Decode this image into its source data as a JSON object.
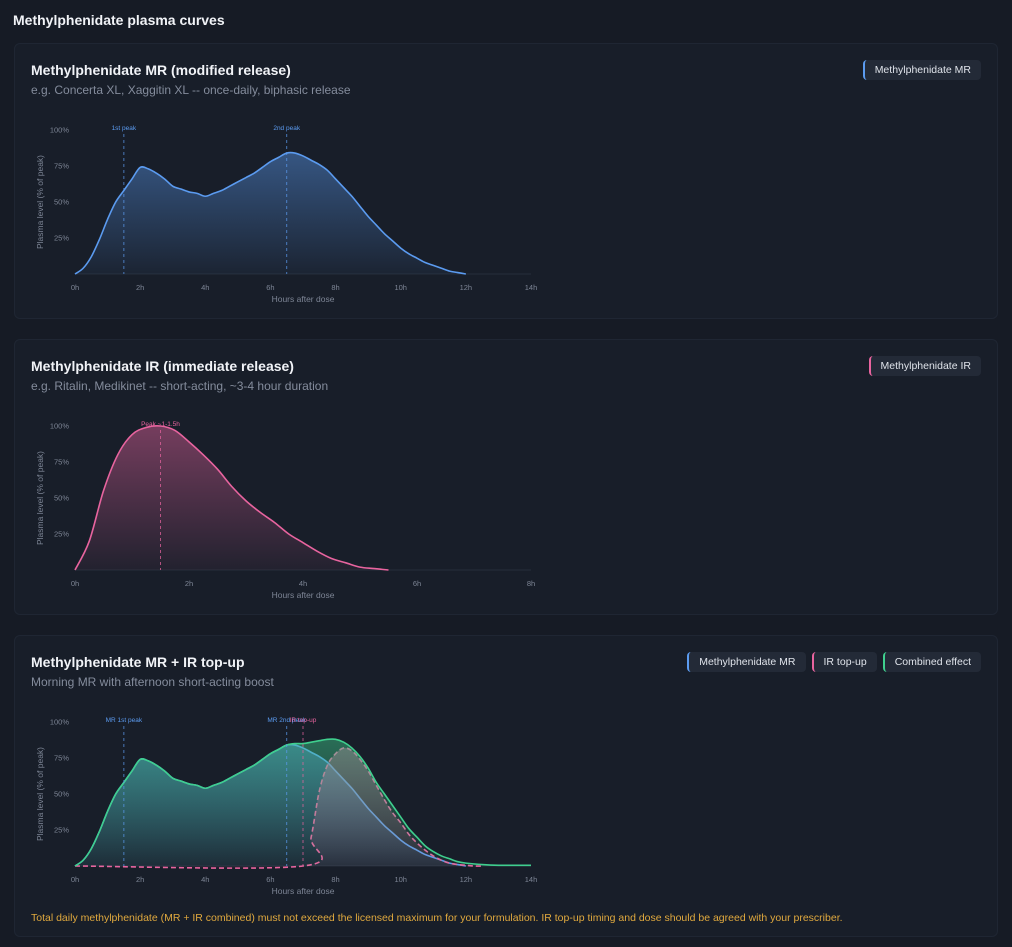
{
  "page": {
    "title": "Methylphenidate plasma curves"
  },
  "cards": [
    {
      "title": "Methylphenidate MR (modified release)",
      "subtitle": "e.g. Concerta XL, Xaggitin XL -- once-daily, biphasic release",
      "legend": [
        "Methylphenidate MR"
      ]
    },
    {
      "title": "Methylphenidate IR (immediate release)",
      "subtitle": "e.g. Ritalin, Medikinet -- short-acting, ~3-4 hour duration",
      "legend": [
        "Methylphenidate IR"
      ]
    },
    {
      "title": "Methylphenidate MR + IR top-up",
      "subtitle": "Morning MR with afternoon short-acting boost",
      "legend": [
        "Methylphenidate MR",
        "IR top-up",
        "Combined effect"
      ],
      "warning": "Total daily methylphenidate (MR + IR combined) must not exceed the licensed maximum for your formulation. IR top-up timing and dose should be agreed with your prescriber."
    }
  ],
  "colors": {
    "mr": "#5b9bf0",
    "ir": "#e8649f",
    "combined": "#3fcf8e",
    "warning": "#e0a93e"
  },
  "chart_data": [
    {
      "type": "area",
      "xlabel": "Hours after dose",
      "ylabel": "Plasma level (% of peak)",
      "xlim": [
        0,
        14
      ],
      "ylim": [
        0,
        100
      ],
      "xticks": [
        0,
        2,
        4,
        6,
        8,
        10,
        12,
        14
      ],
      "xtick_labels": [
        "0h",
        "2h",
        "4h",
        "6h",
        "8h",
        "10h",
        "12h",
        "14h"
      ],
      "yticks": [
        25,
        50,
        75,
        100
      ],
      "ytick_labels": [
        "25%",
        "50%",
        "75%",
        "100%"
      ],
      "markers": [
        {
          "x": 1.5,
          "label": "1st peak",
          "color": "#5b9bf0"
        },
        {
          "x": 6.5,
          "label": "2nd peak",
          "color": "#5b9bf0"
        }
      ],
      "series": [
        {
          "name": "Methylphenidate MR",
          "color": "#5b9bf0",
          "dashed": false,
          "x": [
            0,
            0.25,
            0.5,
            0.75,
            1,
            1.25,
            1.5,
            1.75,
            2,
            2.25,
            2.5,
            2.75,
            3,
            3.25,
            3.5,
            3.75,
            4,
            4.25,
            4.5,
            4.75,
            5,
            5.25,
            5.5,
            5.75,
            6,
            6.25,
            6.5,
            6.75,
            7,
            7.25,
            7.5,
            7.75,
            8,
            8.25,
            8.5,
            8.75,
            9,
            9.25,
            9.5,
            9.75,
            10,
            10.25,
            10.5,
            10.75,
            11,
            11.25,
            11.5,
            11.75,
            12
          ],
          "y": [
            0,
            4,
            12,
            24,
            38,
            50,
            58,
            66,
            74,
            73,
            70,
            66,
            61,
            59,
            57,
            56,
            54,
            56,
            58,
            61,
            64,
            67,
            70,
            74,
            78,
            81,
            84,
            84,
            82,
            79,
            76,
            72,
            66,
            60,
            54,
            47,
            40,
            34,
            28,
            23,
            18,
            14,
            11,
            8,
            6,
            4,
            2,
            1,
            0
          ]
        }
      ]
    },
    {
      "type": "area",
      "xlabel": "Hours after dose",
      "ylabel": "Plasma level (% of peak)",
      "xlim": [
        0,
        8
      ],
      "ylim": [
        0,
        100
      ],
      "xticks": [
        0,
        2,
        4,
        6,
        8
      ],
      "xtick_labels": [
        "0h",
        "2h",
        "4h",
        "6h",
        "8h"
      ],
      "yticks": [
        25,
        50,
        75,
        100
      ],
      "ytick_labels": [
        "25%",
        "50%",
        "75%",
        "100%"
      ],
      "markers": [
        {
          "x": 1.5,
          "label": "Peak ~1-1.5h",
          "color": "#e8649f"
        }
      ],
      "series": [
        {
          "name": "Methylphenidate IR",
          "color": "#e8649f",
          "dashed": false,
          "x": [
            0,
            0.25,
            0.5,
            0.75,
            1,
            1.25,
            1.5,
            1.75,
            2,
            2.25,
            2.5,
            2.75,
            3,
            3.25,
            3.5,
            3.75,
            4,
            4.25,
            4.5,
            4.75,
            5,
            5.25,
            5.5
          ],
          "y": [
            0,
            20,
            55,
            80,
            94,
            99,
            100,
            97,
            89,
            80,
            70,
            58,
            48,
            40,
            33,
            25,
            19,
            13,
            8,
            5,
            2,
            1,
            0
          ]
        }
      ]
    },
    {
      "type": "area",
      "xlabel": "Hours after dose",
      "ylabel": "Plasma level (% of peak)",
      "xlim": [
        0,
        14
      ],
      "ylim": [
        0,
        100
      ],
      "xticks": [
        0,
        2,
        4,
        6,
        8,
        10,
        12,
        14
      ],
      "xtick_labels": [
        "0h",
        "2h",
        "4h",
        "6h",
        "8h",
        "10h",
        "12h",
        "14h"
      ],
      "yticks": [
        25,
        50,
        75,
        100
      ],
      "ytick_labels": [
        "25%",
        "50%",
        "75%",
        "100%"
      ],
      "markers": [
        {
          "x": 1.5,
          "label": "MR 1st peak",
          "color": "#5b9bf0"
        },
        {
          "x": 6.5,
          "label": "MR 2nd peak",
          "color": "#5b9bf0"
        },
        {
          "x": 7,
          "label": "IR top-up",
          "color": "#e8649f"
        }
      ],
      "series": [
        {
          "name": "Methylphenidate MR",
          "color": "#5b9bf0",
          "dashed": false,
          "x": [
            0,
            0.25,
            0.5,
            0.75,
            1,
            1.25,
            1.5,
            1.75,
            2,
            2.25,
            2.5,
            2.75,
            3,
            3.25,
            3.5,
            3.75,
            4,
            4.25,
            4.5,
            4.75,
            5,
            5.25,
            5.5,
            5.75,
            6,
            6.25,
            6.5,
            6.75,
            7,
            7.25,
            7.5,
            7.75,
            8,
            8.25,
            8.5,
            8.75,
            9,
            9.25,
            9.5,
            9.75,
            10,
            10.25,
            10.5,
            10.75,
            11,
            11.25,
            11.5,
            11.75,
            12
          ],
          "y": [
            0,
            4,
            12,
            24,
            38,
            50,
            58,
            66,
            74,
            73,
            70,
            66,
            61,
            59,
            57,
            56,
            54,
            56,
            58,
            61,
            64,
            67,
            70,
            74,
            78,
            81,
            84,
            84,
            82,
            79,
            76,
            72,
            66,
            60,
            54,
            47,
            40,
            34,
            28,
            23,
            18,
            14,
            11,
            8,
            6,
            4,
            2,
            1,
            0
          ]
        },
        {
          "name": "IR top-up",
          "color": "#e8649f",
          "dashed": true,
          "x": [
            0,
            7,
            7.25,
            7.5,
            7.75,
            8,
            8.25,
            8.5,
            8.75,
            9,
            9.25,
            9.5,
            9.75,
            10,
            10.25,
            10.5,
            10.75,
            11,
            11.25,
            11.5,
            11.75,
            12,
            12.25,
            12.5
          ],
          "y": [
            0,
            0,
            20,
            52,
            70,
            78,
            82,
            80,
            74,
            66,
            56,
            46,
            37,
            30,
            22,
            16,
            11,
            7,
            4,
            2,
            1,
            0.5,
            0,
            0
          ]
        },
        {
          "name": "Combined effect",
          "color": "#3fcf8e",
          "dashed": false,
          "x": [
            0,
            0.25,
            0.5,
            0.75,
            1,
            1.25,
            1.5,
            1.75,
            2,
            2.25,
            2.5,
            2.75,
            3,
            3.25,
            3.5,
            3.75,
            4,
            4.25,
            4.5,
            4.75,
            5,
            5.25,
            5.5,
            5.75,
            6,
            6.25,
            6.5,
            6.75,
            7,
            7.25,
            7.5,
            7.75,
            8,
            8.25,
            8.5,
            8.75,
            9,
            9.25,
            9.5,
            9.75,
            10,
            10.25,
            10.5,
            10.75,
            11,
            11.25,
            11.5,
            11.75,
            12,
            12.5,
            13,
            13.5,
            14
          ],
          "y": [
            0,
            4,
            12,
            24,
            38,
            50,
            58,
            66,
            74,
            73,
            70,
            66,
            61,
            59,
            57,
            56,
            54,
            56,
            58,
            61,
            64,
            67,
            70,
            74,
            78,
            81,
            84,
            85,
            85,
            86,
            87,
            88,
            88,
            86,
            82,
            76,
            68,
            58,
            50,
            42,
            34,
            26,
            20,
            14,
            10,
            7,
            5,
            3,
            2,
            1,
            0.5,
            0.5,
            0.5
          ]
        }
      ]
    }
  ]
}
